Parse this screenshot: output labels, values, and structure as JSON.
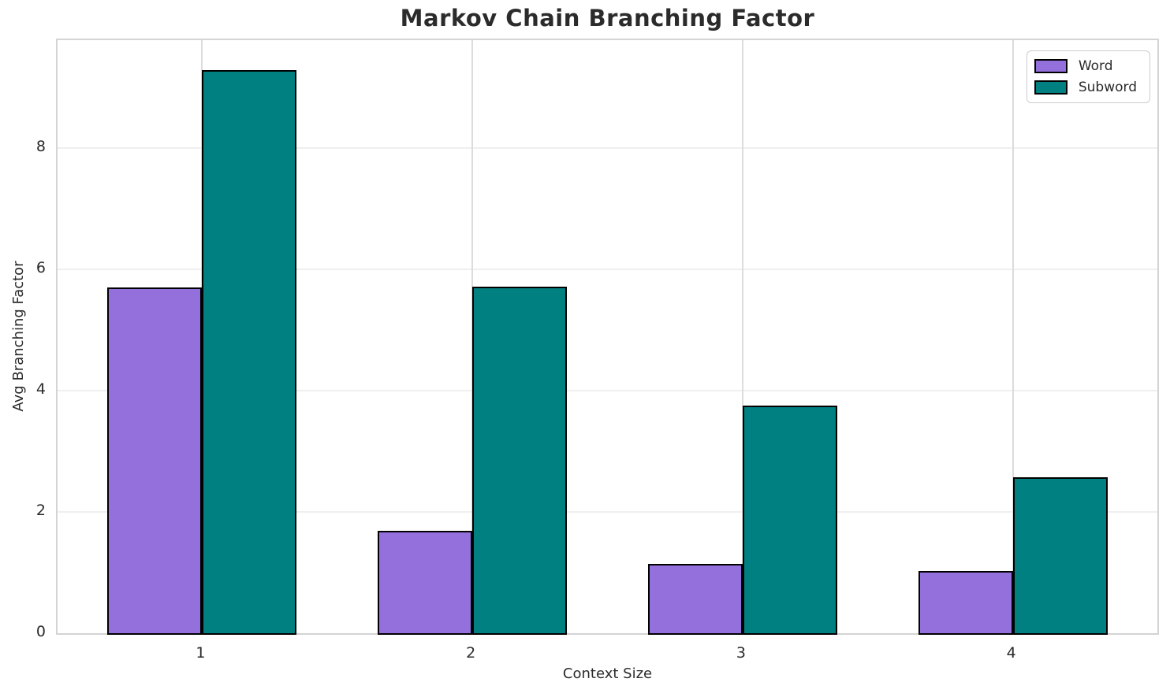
{
  "chart_data": {
    "type": "bar",
    "title": "Markov Chain Branching Factor",
    "xlabel": "Context Size",
    "ylabel": "Avg Branching Factor",
    "categories": [
      "1",
      "2",
      "3",
      "4"
    ],
    "series": [
      {
        "name": "Word",
        "color": "#9370DB",
        "values": [
          5.7,
          1.69,
          1.14,
          1.03
        ]
      },
      {
        "name": "Subword",
        "color": "#008080",
        "values": [
          9.28,
          5.72,
          3.75,
          2.57
        ]
      }
    ],
    "bar_width": 0.35,
    "bar_edge_color": "#000000",
    "yticks": [
      0,
      2,
      4,
      6,
      8
    ],
    "ylim": [
      0,
      9.78
    ],
    "xlim": [
      -0.535,
      3.535
    ],
    "grid": true,
    "legend_position": "upper right",
    "background_color": "#ffffff",
    "grid_color_h": "#efefef",
    "grid_color_v": "#dcdcdc"
  }
}
